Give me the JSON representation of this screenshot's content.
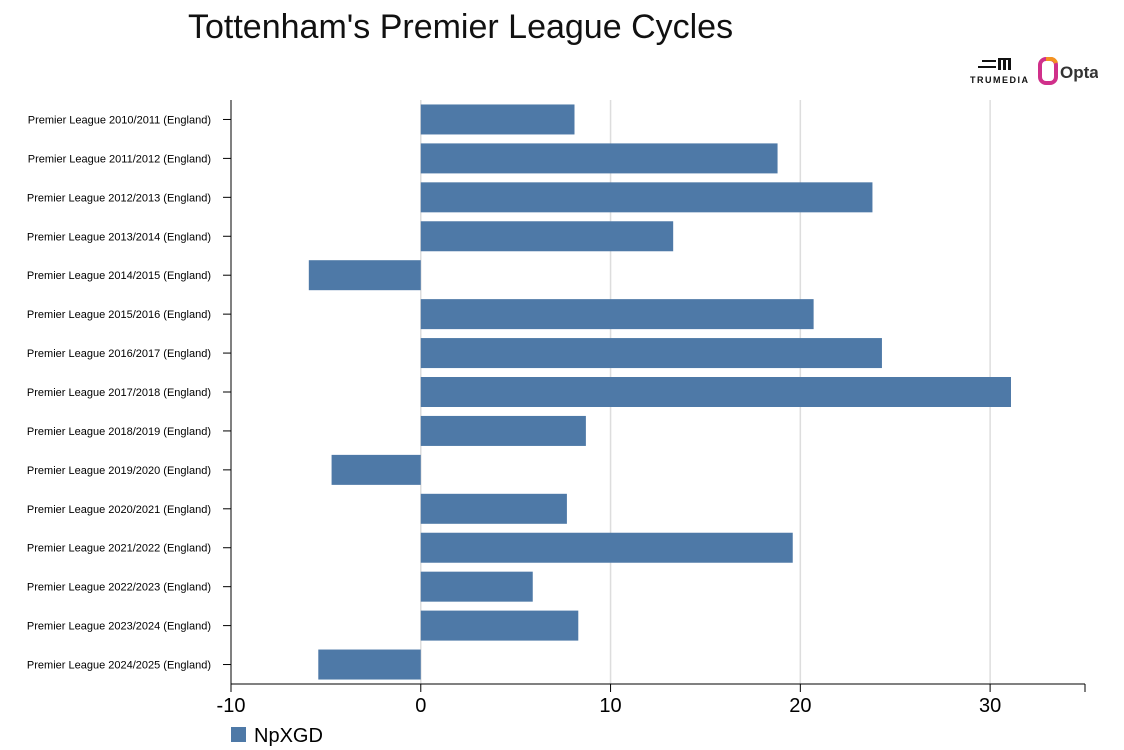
{
  "chart_data": {
    "type": "bar",
    "orientation": "horizontal",
    "title": "Tottenham's Premier League Cycles",
    "categories": [
      "Premier League 2010/2011 (England)",
      "Premier League 2011/2012 (England)",
      "Premier League 2012/2013 (England)",
      "Premier League 2013/2014 (England)",
      "Premier League 2014/2015 (England)",
      "Premier League 2015/2016 (England)",
      "Premier League 2016/2017 (England)",
      "Premier League 2017/2018 (England)",
      "Premier League 2018/2019 (England)",
      "Premier League 2019/2020 (England)",
      "Premier League 2020/2021 (England)",
      "Premier League 2021/2022 (England)",
      "Premier League 2022/2023 (England)",
      "Premier League 2023/2024 (England)",
      "Premier League 2024/2025 (England)"
    ],
    "series": [
      {
        "name": "NpXGD",
        "color": "#4e79a7",
        "values": [
          8.1,
          18.8,
          23.8,
          13.3,
          -5.9,
          20.7,
          24.3,
          31.1,
          8.7,
          -4.7,
          7.7,
          19.6,
          5.9,
          8.3,
          -5.4
        ]
      }
    ],
    "xlim": [
      -10,
      35
    ],
    "xticks": [
      -10,
      0,
      10,
      20,
      30
    ],
    "grid": "vertical",
    "legend": "bottom-left"
  },
  "logos": {
    "trumedia": "TRUMEDIA",
    "opta": "Opta"
  }
}
